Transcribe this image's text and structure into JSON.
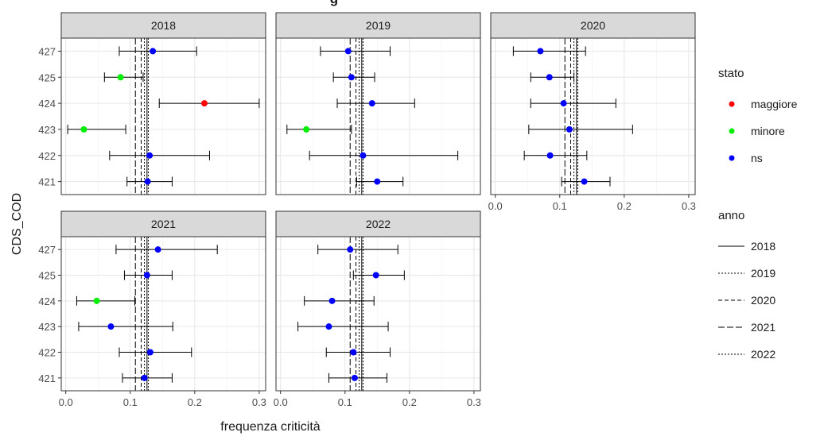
{
  "chart_data": {
    "type": "scatter",
    "subtype": "dot-whisker faceted",
    "title": "g",
    "xlabel": "frequenza criticità",
    "ylabel": "CDS_COD",
    "xlim": [
      -0.007,
      0.31
    ],
    "x_ticks": [
      "0.0",
      "0.1",
      "0.2",
      "0.3"
    ],
    "x_tick_values": [
      0,
      0.1,
      0.2,
      0.3
    ],
    "categories": [
      "427",
      "425",
      "424",
      "423",
      "422",
      "421"
    ],
    "grid": true,
    "legend_position": "right",
    "legend_stato": {
      "title": "stato",
      "items": [
        {
          "label": "maggiore",
          "color": "#ff0000"
        },
        {
          "label": "minore",
          "color": "#00ee00"
        },
        {
          "label": "ns",
          "color": "#0000ff"
        }
      ]
    },
    "legend_anno": {
      "title": "anno",
      "items": [
        {
          "label": "2018",
          "dash": "solid"
        },
        {
          "label": "2019",
          "dash": "dotted"
        },
        {
          "label": "2020",
          "dash": "dashed"
        },
        {
          "label": "2021",
          "dash": "longdash"
        },
        {
          "label": "2022",
          "dash": "dotted"
        }
      ]
    },
    "reference_lines": [
      {
        "anno": "2018",
        "value": 0.126,
        "dash": "solid"
      },
      {
        "anno": "2019",
        "value": 0.122,
        "dash": "dotted"
      },
      {
        "anno": "2020",
        "value": 0.117,
        "dash": "dashed"
      },
      {
        "anno": "2021",
        "value": 0.108,
        "dash": "longdash"
      },
      {
        "anno": "2022",
        "value": 0.128,
        "dash": "dotted"
      }
    ],
    "facets": [
      {
        "label": "2018",
        "points": [
          {
            "cat": "427",
            "value": 0.135,
            "low": 0.083,
            "high": 0.203,
            "stato": "ns"
          },
          {
            "cat": "425",
            "value": 0.085,
            "low": 0.06,
            "high": 0.12,
            "stato": "minore"
          },
          {
            "cat": "424",
            "value": 0.215,
            "low": 0.145,
            "high": 0.3,
            "stato": "maggiore"
          },
          {
            "cat": "423",
            "value": 0.028,
            "low": 0.003,
            "high": 0.093,
            "stato": "minore"
          },
          {
            "cat": "422",
            "value": 0.13,
            "low": 0.068,
            "high": 0.223,
            "stato": "ns"
          },
          {
            "cat": "421",
            "value": 0.127,
            "low": 0.095,
            "high": 0.165,
            "stato": "ns"
          }
        ]
      },
      {
        "label": "2019",
        "points": [
          {
            "cat": "427",
            "value": 0.105,
            "low": 0.062,
            "high": 0.17,
            "stato": "ns"
          },
          {
            "cat": "425",
            "value": 0.11,
            "low": 0.082,
            "high": 0.146,
            "stato": "ns"
          },
          {
            "cat": "424",
            "value": 0.142,
            "low": 0.088,
            "high": 0.208,
            "stato": "ns"
          },
          {
            "cat": "423",
            "value": 0.04,
            "low": 0.01,
            "high": 0.11,
            "stato": "minore"
          },
          {
            "cat": "422",
            "value": 0.128,
            "low": 0.045,
            "high": 0.275,
            "stato": "ns"
          },
          {
            "cat": "421",
            "value": 0.15,
            "low": 0.118,
            "high": 0.19,
            "stato": "ns"
          }
        ]
      },
      {
        "label": "2020",
        "points": [
          {
            "cat": "427",
            "value": 0.07,
            "low": 0.028,
            "high": 0.14,
            "stato": "ns"
          },
          {
            "cat": "425",
            "value": 0.084,
            "low": 0.055,
            "high": 0.122,
            "stato": "ns"
          },
          {
            "cat": "424",
            "value": 0.106,
            "low": 0.055,
            "high": 0.187,
            "stato": "ns"
          },
          {
            "cat": "423",
            "value": 0.115,
            "low": 0.052,
            "high": 0.213,
            "stato": "ns"
          },
          {
            "cat": "422",
            "value": 0.085,
            "low": 0.045,
            "high": 0.142,
            "stato": "ns"
          },
          {
            "cat": "421",
            "value": 0.138,
            "low": 0.103,
            "high": 0.178,
            "stato": "ns"
          }
        ]
      },
      {
        "label": "2021",
        "points": [
          {
            "cat": "427",
            "value": 0.143,
            "low": 0.078,
            "high": 0.235,
            "stato": "ns"
          },
          {
            "cat": "425",
            "value": 0.126,
            "low": 0.091,
            "high": 0.165,
            "stato": "ns"
          },
          {
            "cat": "424",
            "value": 0.048,
            "low": 0.017,
            "high": 0.107,
            "stato": "minore"
          },
          {
            "cat": "423",
            "value": 0.07,
            "low": 0.02,
            "high": 0.166,
            "stato": "ns"
          },
          {
            "cat": "422",
            "value": 0.131,
            "low": 0.083,
            "high": 0.195,
            "stato": "ns"
          },
          {
            "cat": "421",
            "value": 0.122,
            "low": 0.088,
            "high": 0.165,
            "stato": "ns"
          }
        ]
      },
      {
        "label": "2022",
        "points": [
          {
            "cat": "427",
            "value": 0.108,
            "low": 0.058,
            "high": 0.182,
            "stato": "ns"
          },
          {
            "cat": "425",
            "value": 0.148,
            "low": 0.113,
            "high": 0.192,
            "stato": "ns"
          },
          {
            "cat": "424",
            "value": 0.08,
            "low": 0.037,
            "high": 0.145,
            "stato": "ns"
          },
          {
            "cat": "423",
            "value": 0.075,
            "low": 0.027,
            "high": 0.167,
            "stato": "ns"
          },
          {
            "cat": "422",
            "value": 0.113,
            "low": 0.071,
            "high": 0.17,
            "stato": "ns"
          },
          {
            "cat": "421",
            "value": 0.115,
            "low": 0.075,
            "high": 0.165,
            "stato": "ns"
          }
        ]
      }
    ]
  }
}
